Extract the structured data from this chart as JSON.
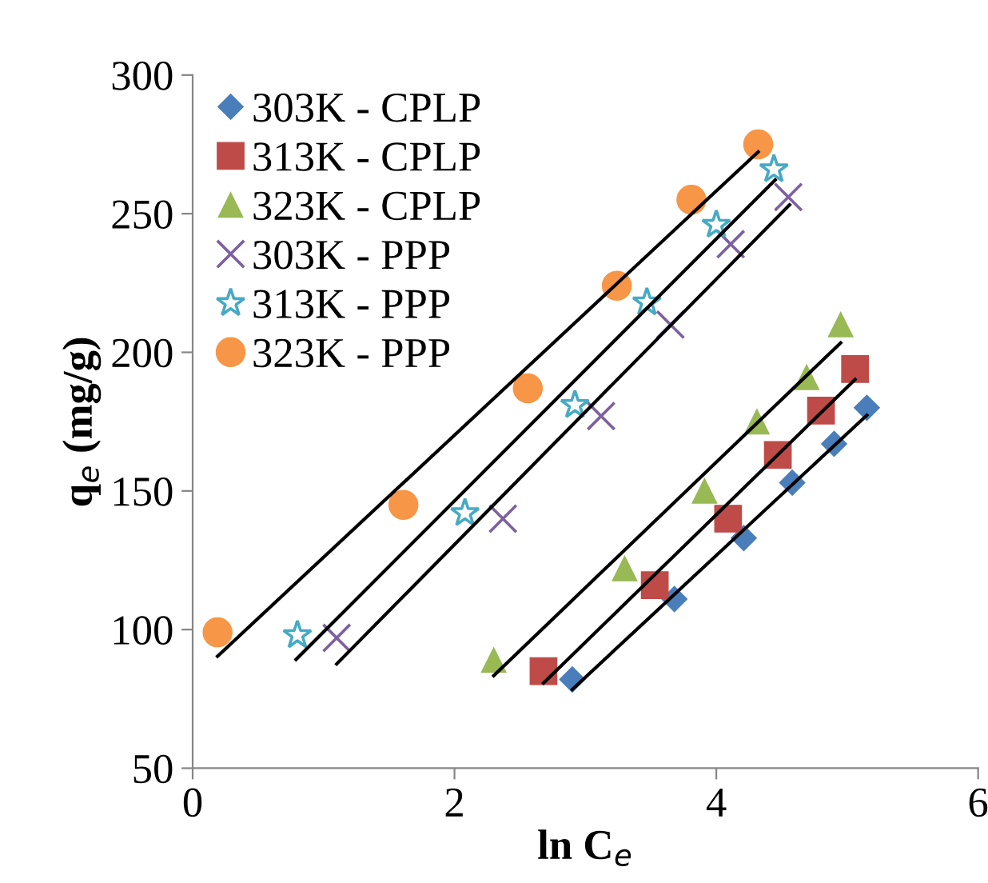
{
  "chart_data": {
    "type": "scatter",
    "xlabel": "ln C$_{e}$",
    "ylabel": "q$_{e}$ (mg/g)",
    "xlim": [
      0,
      6
    ],
    "ylim": [
      50,
      300
    ],
    "xticks": [
      0,
      2,
      4,
      6
    ],
    "yticks": [
      50,
      100,
      150,
      200,
      250,
      300
    ],
    "grid": false,
    "legend": "top left",
    "series": [
      {
        "name": "303K - CPLP",
        "color": "#4a7ebb",
        "marker": "diamond",
        "x": [
          2.9,
          3.68,
          4.21,
          4.58,
          4.9,
          5.15
        ],
        "values": [
          82,
          111,
          133,
          153,
          167,
          180
        ]
      },
      {
        "name": "313K - CPLP",
        "color": "#be4b48",
        "marker": "square",
        "x": [
          2.68,
          3.53,
          4.09,
          4.47,
          4.8,
          5.06
        ],
        "values": [
          85,
          116,
          140,
          163,
          179,
          194
        ]
      },
      {
        "name": "323K - CPLP",
        "color": "#98b954",
        "marker": "triangle",
        "x": [
          2.3,
          3.3,
          3.91,
          4.31,
          4.69,
          4.95
        ],
        "values": [
          89,
          122,
          150,
          175,
          191,
          210
        ]
      },
      {
        "name": "303K - PPP",
        "color": "#7d60a0",
        "marker": "cross",
        "x": [
          1.1,
          2.37,
          3.12,
          3.65,
          4.11,
          4.55
        ],
        "values": [
          97,
          140,
          177,
          210,
          239,
          256
        ]
      },
      {
        "name": "313K - PPP",
        "color": "#46aac5",
        "marker": "star",
        "x": [
          0.8,
          2.08,
          2.92,
          3.47,
          4.0,
          4.44
        ],
        "values": [
          98,
          142,
          181,
          218,
          246,
          266
        ]
      },
      {
        "name": "323K - PPP",
        "color": "#f79646",
        "marker": "circle",
        "x": [
          0.19,
          1.61,
          2.56,
          3.24,
          3.81,
          4.32
        ],
        "values": [
          99,
          145,
          187,
          224,
          255,
          275
        ]
      },
      {
        "type": "line",
        "color": "#000000",
        "marker": "none",
        "x": [
          0.19,
          4.32
        ],
        "values": [
          90.4,
          272.3
        ]
      },
      {
        "type": "line",
        "color": "#000000",
        "marker": "none",
        "x": [
          0.79,
          4.45
        ],
        "values": [
          89.2,
          262.2
        ]
      },
      {
        "type": "line",
        "color": "#000000",
        "marker": "none",
        "x": [
          1.1,
          4.56
        ],
        "values": [
          87.6,
          253.2
        ]
      },
      {
        "type": "line",
        "color": "#000000",
        "marker": "none",
        "x": [
          2.3,
          4.95
        ],
        "values": [
          83.4,
          203.4
        ]
      },
      {
        "type": "line",
        "color": "#000000",
        "marker": "none",
        "x": [
          2.68,
          5.06
        ],
        "values": [
          80.7,
          190.2
        ]
      },
      {
        "type": "line",
        "color": "#000000",
        "marker": "none",
        "x": [
          2.9,
          5.15
        ],
        "values": [
          78.4,
          177.3
        ]
      }
    ]
  }
}
